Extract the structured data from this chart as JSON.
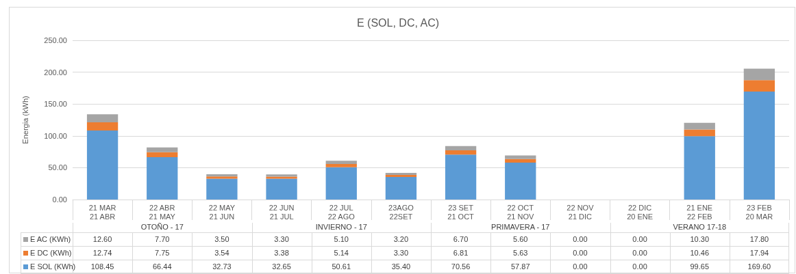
{
  "chart_data": {
    "type": "bar",
    "title": "E (SOL, DC, AC)",
    "ylabel": "Energia (kWh)",
    "categories": [
      "21 MAR\n21 ABR",
      "22 ABR\n21 MAY",
      "22 MAY\n21 JUN",
      "22 JUN\n21 JUL",
      "22 JUL\n22 AGO",
      "23AGO\n22SET",
      "23 SET\n21 OCT",
      "22 OCT\n21 NOV",
      "22 NOV\n21 DIC",
      "22 DIC\n20 ENE",
      "21 ENE\n22 FEB",
      "23 FEB\n20 MAR"
    ],
    "annotations": [
      "OTOÑO - 17",
      "INVIERNO - 17",
      "PRIMAVERA - 17",
      "VERANO 17-18"
    ],
    "stacked": true,
    "series": [
      {
        "name": "E SOL (KWh)",
        "color": "#5b9bd5",
        "values": [
          108.45,
          66.44,
          32.73,
          32.65,
          50.61,
          35.4,
          70.56,
          57.87,
          0,
          0,
          99.65,
          169.6
        ],
        "value_labels": [
          "108.45",
          "66.44",
          "32.73",
          "32.65",
          "50.61",
          "35.40",
          "70.56",
          "57.87",
          "0.00",
          "0.00",
          "99.65",
          "169.60"
        ]
      },
      {
        "name": "E DC (KWh)",
        "color": "#ed7d31",
        "values": [
          12.74,
          7.75,
          3.54,
          3.38,
          5.14,
          3.3,
          6.81,
          5.63,
          0,
          0,
          10.46,
          17.94
        ],
        "value_labels": [
          "12.74",
          "7.75",
          "3.54",
          "3.38",
          "5.14",
          "3.30",
          "6.81",
          "5.63",
          "0.00",
          "0.00",
          "10.46",
          "17.94"
        ]
      },
      {
        "name": "E AC (KWh)",
        "color": "#a5a5a5",
        "values": [
          12.6,
          7.7,
          3.5,
          3.3,
          5.1,
          3.2,
          6.7,
          5.6,
          0,
          0,
          10.3,
          17.8
        ],
        "value_labels": [
          "12.60",
          "7.70",
          "3.50",
          "3.30",
          "5.10",
          "3.20",
          "6.70",
          "5.60",
          "0.00",
          "0.00",
          "10.30",
          "17.80"
        ]
      }
    ],
    "ylim": [
      0,
      250
    ],
    "yticks": [
      {
        "value": 0,
        "label": "0.00"
      },
      {
        "value": 50,
        "label": "50.00"
      },
      {
        "value": 100,
        "label": "100.00"
      },
      {
        "value": 150,
        "label": "150.00"
      },
      {
        "value": 200,
        "label": "200.00"
      },
      {
        "value": 250,
        "label": "250.00"
      }
    ],
    "grid": "y",
    "legend": "bottom left"
  }
}
